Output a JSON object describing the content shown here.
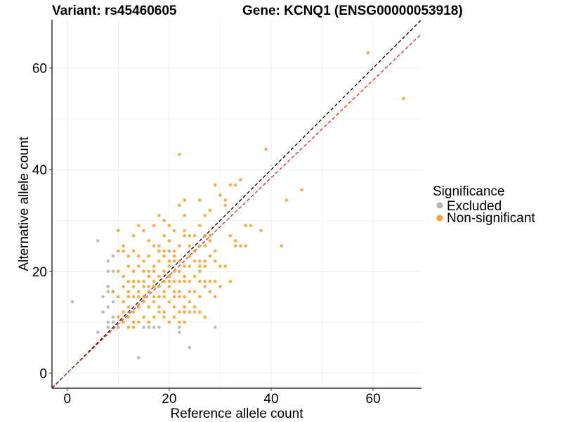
{
  "chart_data": {
    "type": "scatter",
    "title_left": "Variant: rs45460605",
    "title_right": "Gene: KCNQ1 (ENSG00000053918)",
    "xlabel": "Reference allele count",
    "ylabel": "Alternative allele count",
    "xlim": [
      -3,
      69.5
    ],
    "ylim": [
      -3,
      69.5
    ],
    "x_ticks": [
      0,
      20,
      40,
      60
    ],
    "y_ticks": [
      0,
      20,
      40,
      60
    ],
    "grid": true,
    "legend": {
      "title": "Significance",
      "position": "right",
      "entries": [
        {
          "label": "Excluded",
          "color": "#b4b4b4"
        },
        {
          "label": "Non-significant",
          "color": "#f5a332"
        }
      ]
    },
    "reference_lines": [
      {
        "kind": "identity",
        "intercept": 0,
        "slope": 1.0,
        "color": "#000000",
        "dash": true
      },
      {
        "kind": "fit",
        "intercept": 0,
        "slope": 0.96,
        "color": "#e8261e",
        "dash": true
      }
    ],
    "series": [
      {
        "name": "Excluded",
        "color": "#b4b4b4",
        "points": [
          [
            1,
            14
          ],
          [
            6,
            26
          ],
          [
            6,
            8
          ],
          [
            7,
            15
          ],
          [
            7,
            12
          ],
          [
            8,
            22
          ],
          [
            8,
            20
          ],
          [
            8,
            17
          ],
          [
            8,
            16
          ],
          [
            8,
            13
          ],
          [
            8,
            10
          ],
          [
            8,
            9
          ],
          [
            9,
            23
          ],
          [
            9,
            20
          ],
          [
            9,
            16
          ],
          [
            9,
            14
          ],
          [
            9,
            11
          ],
          [
            9,
            10
          ],
          [
            10,
            9
          ],
          [
            14,
            3
          ],
          [
            15,
            9
          ],
          [
            16,
            9
          ],
          [
            17,
            9
          ],
          [
            18,
            9
          ],
          [
            22,
            9
          ],
          [
            22,
            8
          ],
          [
            24,
            5
          ],
          [
            29,
            9
          ]
        ]
      },
      {
        "name": "Non-significant",
        "color": "#f5a332",
        "points": [
          [
            59,
            63
          ],
          [
            66,
            54
          ],
          [
            22,
            43
          ],
          [
            39,
            44
          ],
          [
            46,
            36
          ],
          [
            43,
            34
          ],
          [
            34,
            38
          ],
          [
            32,
            37
          ],
          [
            33,
            37
          ],
          [
            29,
            37
          ],
          [
            30,
            35
          ],
          [
            31,
            33
          ],
          [
            31,
            34
          ],
          [
            26,
            34
          ],
          [
            23,
            34
          ],
          [
            28,
            32
          ],
          [
            35,
            29
          ],
          [
            36,
            29
          ],
          [
            38,
            28
          ],
          [
            42,
            25
          ],
          [
            32,
            27
          ],
          [
            33,
            26
          ],
          [
            33,
            25
          ],
          [
            34,
            25
          ],
          [
            35,
            25
          ],
          [
            30,
            21
          ],
          [
            31,
            21
          ],
          [
            22,
            33
          ],
          [
            23,
            31
          ],
          [
            27,
            31
          ],
          [
            26,
            29
          ],
          [
            18,
            31
          ],
          [
            17,
            29
          ],
          [
            19,
            30
          ],
          [
            14,
            29
          ],
          [
            15,
            28
          ],
          [
            20,
            29
          ],
          [
            10,
            28
          ],
          [
            13,
            27
          ],
          [
            16,
            26
          ],
          [
            19,
            27
          ],
          [
            20,
            26
          ],
          [
            23,
            27
          ],
          [
            24,
            27
          ],
          [
            25,
            27
          ],
          [
            27,
            27
          ],
          [
            28,
            27
          ],
          [
            24,
            25
          ],
          [
            25,
            24
          ],
          [
            26,
            25
          ],
          [
            27,
            25
          ],
          [
            28,
            26
          ],
          [
            29,
            24
          ],
          [
            24,
            23
          ],
          [
            25,
            22
          ],
          [
            26,
            22
          ],
          [
            27,
            21
          ],
          [
            27,
            22
          ],
          [
            28,
            23
          ],
          [
            29,
            22
          ],
          [
            22,
            22
          ],
          [
            21,
            23
          ],
          [
            21,
            24
          ],
          [
            22,
            25
          ],
          [
            20,
            24
          ],
          [
            19,
            23
          ],
          [
            18,
            24
          ],
          [
            17,
            25
          ],
          [
            16,
            23
          ],
          [
            15,
            22
          ],
          [
            14,
            23
          ],
          [
            13,
            24
          ],
          [
            12,
            23
          ],
          [
            11,
            24
          ],
          [
            11,
            25
          ],
          [
            10,
            24
          ],
          [
            12,
            21
          ],
          [
            13,
            20
          ],
          [
            14,
            21
          ],
          [
            15,
            20
          ],
          [
            16,
            20
          ],
          [
            17,
            21
          ],
          [
            18,
            22
          ],
          [
            19,
            20
          ],
          [
            20,
            21
          ],
          [
            21,
            20
          ],
          [
            22,
            20
          ],
          [
            23,
            21
          ],
          [
            10,
            20
          ],
          [
            11,
            19
          ],
          [
            12,
            18
          ],
          [
            13,
            17
          ],
          [
            14,
            18
          ],
          [
            15,
            18
          ],
          [
            16,
            19
          ],
          [
            17,
            18
          ],
          [
            18,
            17
          ],
          [
            19,
            18
          ],
          [
            20,
            18
          ],
          [
            21,
            18
          ],
          [
            22,
            18
          ],
          [
            23,
            18
          ],
          [
            24,
            18
          ],
          [
            25,
            19
          ],
          [
            26,
            18
          ],
          [
            27,
            18
          ],
          [
            28,
            18
          ],
          [
            29,
            18
          ],
          [
            11,
            17
          ],
          [
            12,
            16
          ],
          [
            13,
            15
          ],
          [
            14,
            16
          ],
          [
            15,
            15
          ],
          [
            16,
            16
          ],
          [
            17,
            17
          ],
          [
            18,
            15
          ],
          [
            19,
            16
          ],
          [
            20,
            17
          ],
          [
            21,
            16
          ],
          [
            22,
            16
          ],
          [
            23,
            15
          ],
          [
            24,
            16
          ],
          [
            25,
            16
          ],
          [
            26,
            15
          ],
          [
            10,
            15
          ],
          [
            11,
            14
          ],
          [
            12,
            13
          ],
          [
            13,
            12
          ],
          [
            14,
            13
          ],
          [
            15,
            14
          ],
          [
            16,
            13
          ],
          [
            17,
            14
          ],
          [
            18,
            13
          ],
          [
            19,
            12
          ],
          [
            20,
            14
          ],
          [
            21,
            13
          ],
          [
            22,
            12
          ],
          [
            23,
            13
          ],
          [
            24,
            14
          ],
          [
            25,
            13
          ],
          [
            11,
            12
          ],
          [
            12,
            11
          ],
          [
            13,
            10
          ],
          [
            14,
            10
          ],
          [
            15,
            11
          ],
          [
            16,
            10
          ],
          [
            17,
            11
          ],
          [
            18,
            12
          ],
          [
            19,
            11
          ],
          [
            20,
            10
          ],
          [
            21,
            11
          ],
          [
            22,
            10
          ],
          [
            23,
            12
          ],
          [
            24,
            12
          ],
          [
            25,
            12
          ],
          [
            26,
            12
          ],
          [
            27,
            11
          ],
          [
            10,
            11
          ],
          [
            11,
            10
          ],
          [
            12,
            9
          ],
          [
            13,
            9
          ],
          [
            27,
            17
          ],
          [
            28,
            16
          ],
          [
            29,
            15
          ],
          [
            30,
            17
          ],
          [
            32,
            18
          ],
          [
            24,
            21
          ],
          [
            26,
            20
          ],
          [
            20,
            19
          ],
          [
            18,
            19
          ],
          [
            16,
            17
          ],
          [
            19,
            15
          ],
          [
            21,
            15
          ],
          [
            17,
            15
          ],
          [
            15,
            17
          ],
          [
            13,
            18
          ],
          [
            9,
            16
          ],
          [
            18,
            25
          ],
          [
            20,
            22
          ],
          [
            23,
            19
          ],
          [
            26,
            21
          ],
          [
            19,
            24
          ],
          [
            21,
            22
          ],
          [
            17,
            20
          ],
          [
            22,
            15
          ],
          [
            23,
            10
          ],
          [
            14,
            15
          ],
          [
            12,
            15
          ],
          [
            21,
            28
          ],
          [
            23,
            28
          ]
        ]
      }
    ]
  }
}
